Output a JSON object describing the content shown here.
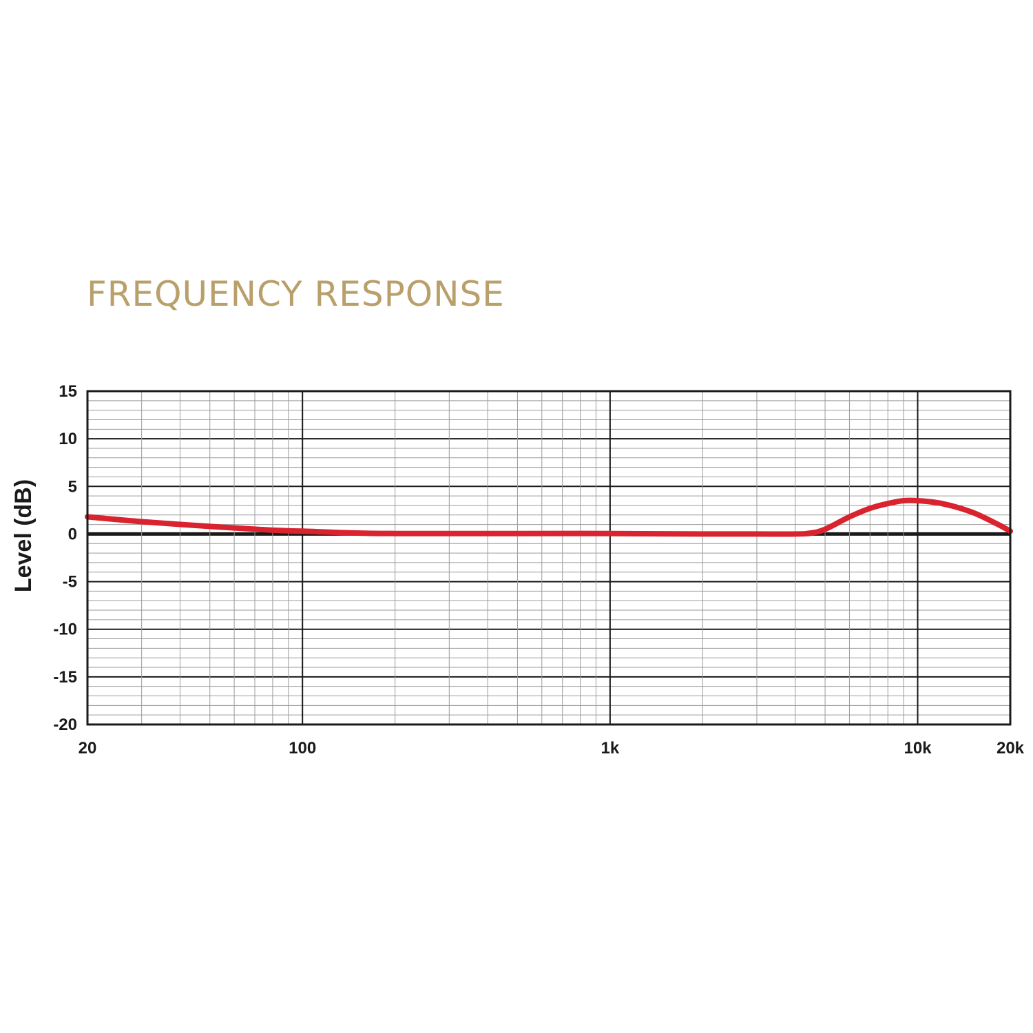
{
  "chart_data": {
    "type": "line",
    "title": "FREQUENCY RESPONSE",
    "xlabel": "",
    "ylabel": "Level (dB)",
    "x_scale": "log",
    "xlim": [
      20,
      20000
    ],
    "ylim": [
      -20,
      15
    ],
    "x_ticks": [
      {
        "value": 20,
        "label": "20"
      },
      {
        "value": 100,
        "label": "100"
      },
      {
        "value": 1000,
        "label": "1k"
      },
      {
        "value": 10000,
        "label": "10k"
      },
      {
        "value": 20000,
        "label": "20k"
      }
    ],
    "y_ticks": [
      {
        "value": 15,
        "label": "15"
      },
      {
        "value": 10,
        "label": "10"
      },
      {
        "value": 5,
        "label": "5"
      },
      {
        "value": 0,
        "label": "0"
      },
      {
        "value": -5,
        "label": "-5"
      },
      {
        "value": -10,
        "label": "-10"
      },
      {
        "value": -15,
        "label": "-15"
      },
      {
        "value": -20,
        "label": "-20"
      }
    ],
    "grid": true,
    "colors": {
      "line": "#d9232e",
      "title": "#b9a06a",
      "grid_minor": "#9a9a9a",
      "grid_major": "#1a1a1a"
    },
    "series": [
      {
        "x": [
          20,
          30,
          50,
          80,
          100,
          150,
          200,
          300,
          500,
          1000,
          2000,
          3000,
          4000,
          4500,
          5000,
          6000,
          7000,
          8000,
          9000,
          10000,
          12000,
          15000,
          18000,
          20000
        ],
        "y": [
          1.8,
          1.3,
          0.8,
          0.4,
          0.3,
          0.1,
          0.05,
          0.05,
          0.05,
          0.05,
          0.0,
          0.0,
          0.0,
          0.1,
          0.5,
          1.8,
          2.7,
          3.2,
          3.5,
          3.5,
          3.2,
          2.3,
          1.1,
          0.3
        ]
      }
    ]
  }
}
